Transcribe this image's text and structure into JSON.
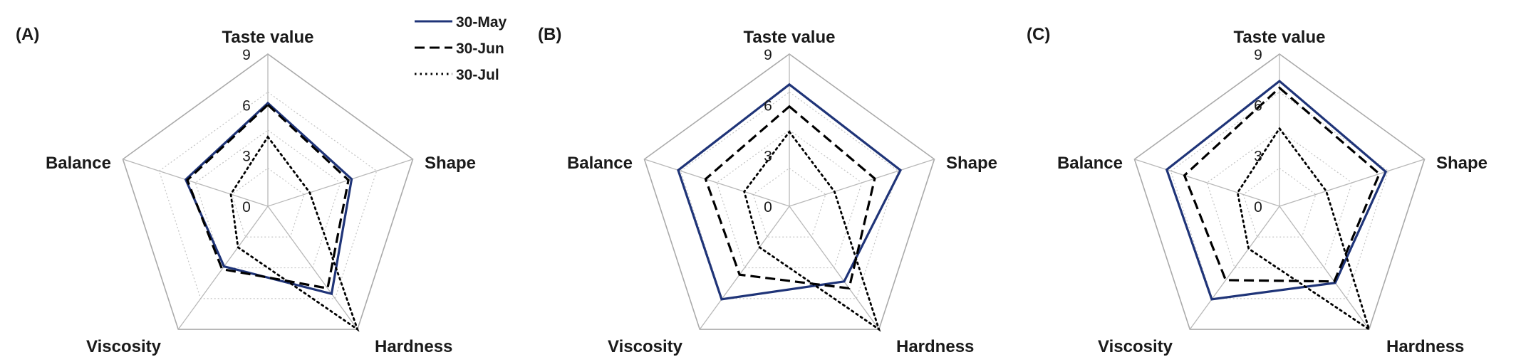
{
  "legend": {
    "placement": "top",
    "entries": [
      {
        "name": "30-May",
        "style": "solid",
        "color": "#1f3478"
      },
      {
        "name": "30-Jun",
        "style": "dashed",
        "color": "#000000"
      },
      {
        "name": "30-Jul",
        "style": "dotted",
        "color": "#000000"
      }
    ]
  },
  "chart_data": [
    {
      "type": "radar",
      "panel_label": "(A)",
      "axes": [
        "Taste value",
        "Shape",
        "Hardness",
        "Viscosity",
        "Balance"
      ],
      "ticks": [
        "0",
        "3",
        "6",
        "9"
      ],
      "rlim": [
        0,
        9
      ],
      "series": [
        {
          "name": "30-May",
          "values": [
            6.1,
            5.2,
            6.4,
            4.4,
            5.1
          ]
        },
        {
          "name": "30-Jun",
          "values": [
            6.0,
            5.0,
            6.0,
            4.6,
            5.0
          ]
        },
        {
          "name": "30-Jul",
          "values": [
            4.1,
            2.6,
            9.0,
            3.0,
            2.3
          ]
        }
      ]
    },
    {
      "type": "radar",
      "panel_label": "(B)",
      "axes": [
        "Taste value",
        "Shape",
        "Hardness",
        "Viscosity",
        "Balance"
      ],
      "ticks": [
        "0",
        "3",
        "6",
        "9"
      ],
      "rlim": [
        0,
        9
      ],
      "series": [
        {
          "name": "30-May",
          "values": [
            7.2,
            6.9,
            5.5,
            6.8,
            6.9
          ]
        },
        {
          "name": "30-Jun",
          "values": [
            5.9,
            5.3,
            6.0,
            5.0,
            5.2
          ]
        },
        {
          "name": "30-Jul",
          "values": [
            4.4,
            2.8,
            9.0,
            3.0,
            2.8
          ]
        }
      ]
    },
    {
      "type": "radar",
      "panel_label": "(C)",
      "axes": [
        "Taste value",
        "Shape",
        "Hardness",
        "Viscosity",
        "Balance"
      ],
      "ticks": [
        "0",
        "3",
        "6",
        "9"
      ],
      "rlim": [
        0,
        9
      ],
      "series": [
        {
          "name": "30-May",
          "values": [
            7.4,
            6.6,
            5.6,
            6.8,
            7.0
          ]
        },
        {
          "name": "30-Jun",
          "values": [
            7.0,
            6.2,
            5.5,
            5.4,
            5.9
          ]
        },
        {
          "name": "30-Jul",
          "values": [
            4.6,
            2.9,
            9.0,
            3.1,
            2.6
          ]
        }
      ]
    }
  ]
}
